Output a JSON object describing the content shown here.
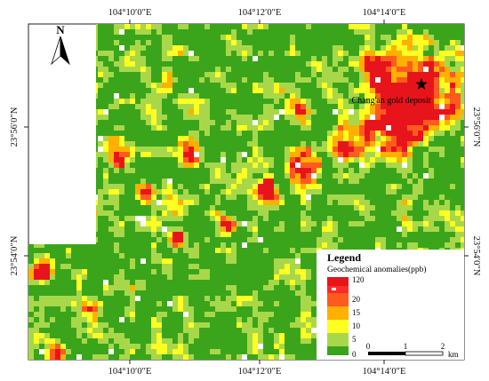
{
  "axes": {
    "top_ticks": [
      "104°10′0″E",
      "104°12′0″E",
      "104°14′0″E"
    ],
    "bottom_ticks": [
      "104°10′0″E",
      "104°12′0″E",
      "104°14′0″E"
    ],
    "left_ticks": [
      "23°56′0″N",
      "23°54′0″N"
    ],
    "right_ticks": [
      "23°56′0″N",
      "23°54′0″N"
    ]
  },
  "north_arrow": {
    "label": "N"
  },
  "deposit": {
    "label": "Chang'an gold deposit",
    "icon": "star-icon"
  },
  "legend": {
    "title": "Legend",
    "subtitle": "Geochemical anomalies(ppb)",
    "classes": [
      {
        "label": "120",
        "color": "#e8141b"
      },
      {
        "label": "",
        "color": "#ff2a2a",
        "note": "white blanks"
      },
      {
        "label": "20",
        "color": "#ff5a1f"
      },
      {
        "label": "15",
        "color": "#ffb000"
      },
      {
        "label": "10",
        "color": "#ffff22"
      },
      {
        "label": "5",
        "color": "#a8d84a"
      },
      {
        "label": "0",
        "color": "#3aa51b"
      }
    ]
  },
  "scale_bar": {
    "ticks": [
      "0",
      "1",
      "2"
    ],
    "unit": "km"
  },
  "colors": {
    "green_dark": "#3aa51b",
    "green_light": "#a8d84a",
    "yellow": "#ffff22",
    "orange": "#ffb000",
    "red_orange": "#ff5a1f",
    "red": "#e8141b"
  }
}
